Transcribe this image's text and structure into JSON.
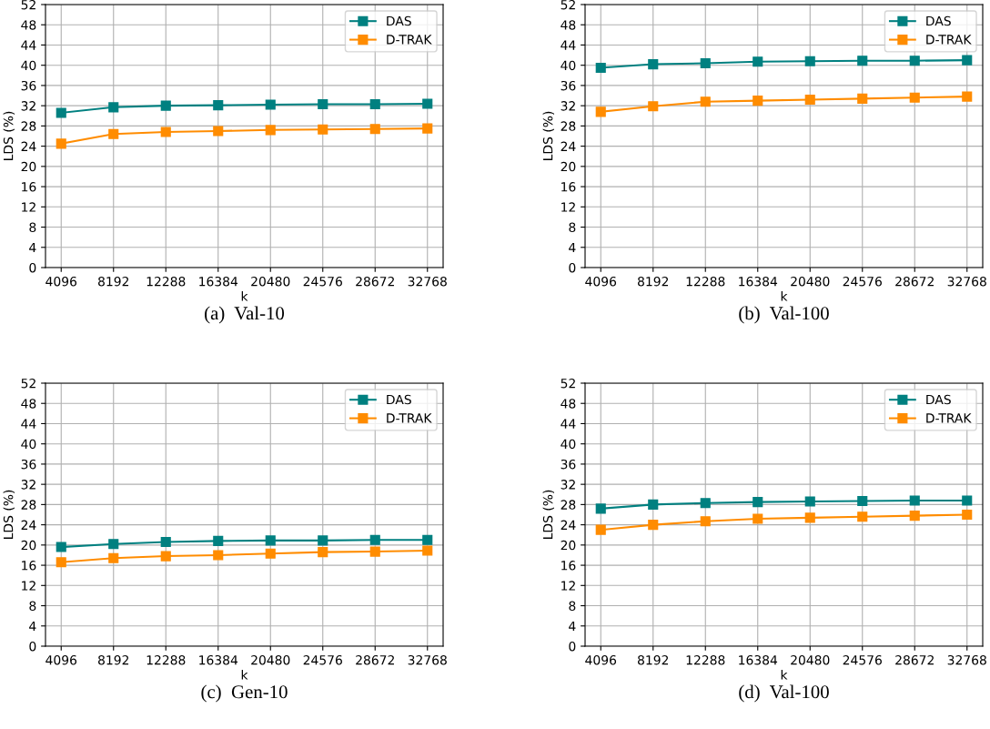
{
  "chart_data": [
    {
      "type": "line",
      "xlabel": "k",
      "ylabel": "LDS (%)",
      "annotations": [
        "(a)  Val-10"
      ],
      "categories": [
        "4096",
        "8192",
        "12288",
        "16384",
        "20480",
        "24576",
        "28672",
        "32768"
      ],
      "ylim": [
        0,
        52
      ],
      "yticks": [
        0,
        4,
        8,
        12,
        16,
        20,
        24,
        28,
        32,
        36,
        40,
        44,
        48,
        52
      ],
      "grid": true,
      "legend": "top right",
      "marker": "square",
      "line_style": "solid",
      "series": [
        {
          "name": "DAS",
          "color": "#008080",
          "values": [
            30.6,
            31.7,
            32.0,
            32.1,
            32.2,
            32.3,
            32.3,
            32.4
          ]
        },
        {
          "name": "D-TRAK",
          "color": "#ff8c00",
          "values": [
            24.5,
            26.4,
            26.8,
            27.0,
            27.2,
            27.3,
            27.4,
            27.5
          ]
        }
      ]
    },
    {
      "type": "line",
      "xlabel": "k",
      "ylabel": "LDS (%)",
      "annotations": [
        "(b)  Val-100"
      ],
      "categories": [
        "4096",
        "8192",
        "12288",
        "16384",
        "20480",
        "24576",
        "28672",
        "32768"
      ],
      "ylim": [
        0,
        52
      ],
      "yticks": [
        0,
        4,
        8,
        12,
        16,
        20,
        24,
        28,
        32,
        36,
        40,
        44,
        48,
        52
      ],
      "grid": true,
      "legend": "top right",
      "marker": "square",
      "line_style": "solid",
      "series": [
        {
          "name": "DAS",
          "color": "#008080",
          "values": [
            39.5,
            40.2,
            40.4,
            40.7,
            40.8,
            40.9,
            40.9,
            41.0
          ]
        },
        {
          "name": "D-TRAK",
          "color": "#ff8c00",
          "values": [
            30.8,
            31.9,
            32.8,
            33.0,
            33.2,
            33.4,
            33.6,
            33.8
          ]
        }
      ]
    },
    {
      "type": "line",
      "xlabel": "k",
      "ylabel": "LDS (%)",
      "annotations": [
        "(c)  Gen-10"
      ],
      "categories": [
        "4096",
        "8192",
        "12288",
        "16384",
        "20480",
        "24576",
        "28672",
        "32768"
      ],
      "ylim": [
        0,
        52
      ],
      "yticks": [
        0,
        4,
        8,
        12,
        16,
        20,
        24,
        28,
        32,
        36,
        40,
        44,
        48,
        52
      ],
      "grid": true,
      "legend": "top right",
      "marker": "square",
      "line_style": "solid",
      "series": [
        {
          "name": "DAS",
          "color": "#008080",
          "values": [
            19.6,
            20.2,
            20.6,
            20.8,
            20.9,
            20.9,
            21.0,
            21.0
          ]
        },
        {
          "name": "D-TRAK",
          "color": "#ff8c00",
          "values": [
            16.6,
            17.4,
            17.8,
            18.0,
            18.3,
            18.6,
            18.7,
            18.9
          ]
        }
      ]
    },
    {
      "type": "line",
      "xlabel": "k",
      "ylabel": "LDS (%)",
      "annotations": [
        "(d)  Val-100"
      ],
      "categories": [
        "4096",
        "8192",
        "12288",
        "16384",
        "20480",
        "24576",
        "28672",
        "32768"
      ],
      "ylim": [
        0,
        52
      ],
      "yticks": [
        0,
        4,
        8,
        12,
        16,
        20,
        24,
        28,
        32,
        36,
        40,
        44,
        48,
        52
      ],
      "grid": true,
      "legend": "top right",
      "marker": "square",
      "line_style": "solid",
      "series": [
        {
          "name": "DAS",
          "color": "#008080",
          "values": [
            27.2,
            28.0,
            28.3,
            28.5,
            28.6,
            28.7,
            28.8,
            28.8
          ]
        },
        {
          "name": "D-TRAK",
          "color": "#ff8c00",
          "values": [
            23.0,
            24.0,
            24.7,
            25.2,
            25.4,
            25.6,
            25.8,
            26.0
          ]
        }
      ]
    }
  ]
}
